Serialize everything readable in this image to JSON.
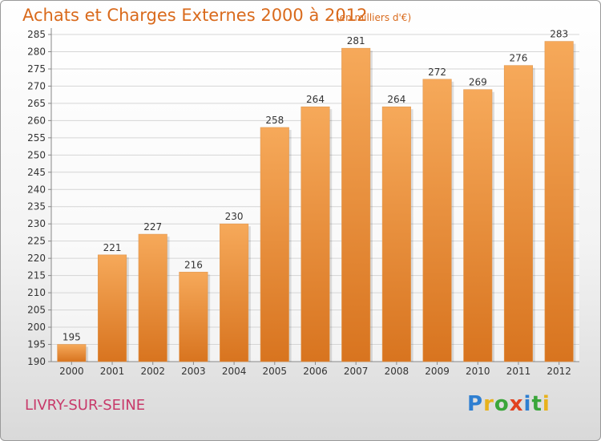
{
  "header": {
    "title": "Achats et Charges Externes 2000 à 2012",
    "unit": "(en milliers d'€)"
  },
  "footer": {
    "commune": "LIVRY-SUR-SEINE",
    "logo": [
      "P",
      "r",
      "o",
      "x",
      "i",
      "t",
      "i"
    ]
  },
  "colors": {
    "bar_light": "#f6a95a",
    "bar_dark": "#d8741f",
    "title": "#d96a1c",
    "commune": "#c83a6a",
    "grid": "#d5d5d5"
  },
  "chart_data": {
    "type": "bar",
    "title": "Achats et Charges Externes 2000 à 2012",
    "subtitle": "(en milliers d'€)",
    "xlabel": "",
    "ylabel": "",
    "categories": [
      "2000",
      "2001",
      "2002",
      "2003",
      "2004",
      "2005",
      "2006",
      "2007",
      "2008",
      "2009",
      "2010",
      "2011",
      "2012"
    ],
    "values": [
      195,
      221,
      227,
      216,
      230,
      258,
      264,
      281,
      264,
      272,
      269,
      276,
      283
    ],
    "ylim": [
      190,
      285
    ],
    "ytick_step": 5,
    "grid": true,
    "legend": "none"
  }
}
